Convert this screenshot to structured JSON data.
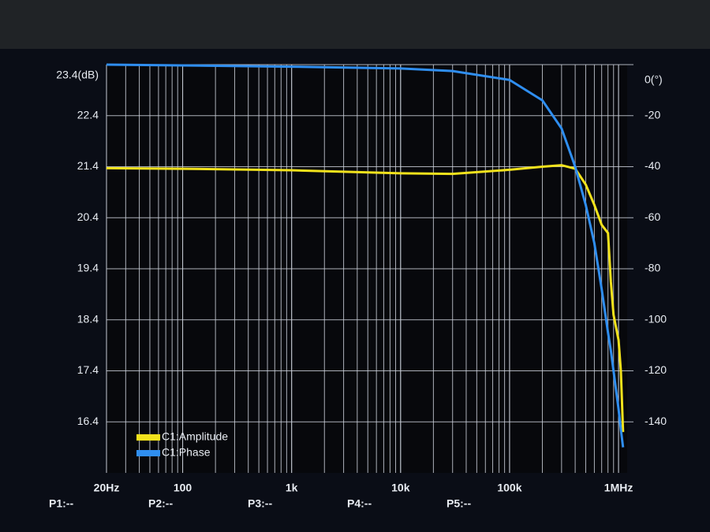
{
  "chart_data": {
    "type": "line",
    "x": [
      20,
      100,
      1000,
      10000,
      30000,
      100000,
      200000,
      300000,
      400000,
      500000,
      600000,
      700000,
      800000,
      850000,
      900000,
      1000000,
      1050000,
      1100000
    ],
    "series": [
      {
        "name": "C1:Amplitude",
        "color": "#f2e21c",
        "values": [
          21.37,
          21.36,
          21.33,
          21.27,
          21.26,
          21.34,
          21.4,
          21.43,
          21.36,
          21.05,
          20.65,
          20.26,
          20.1,
          19.15,
          18.5,
          18.0,
          17.4,
          16.2
        ]
      },
      {
        "name": "C1:Phase",
        "color": "#2f8ef0",
        "axis": "y2",
        "values": [
          0,
          -0.3,
          -0.8,
          -1.5,
          -2.5,
          -6,
          -14,
          -25,
          -40,
          -55,
          -70,
          -88,
          -105,
          -112,
          -120,
          -135,
          -143,
          -150
        ]
      }
    ],
    "xscale": "log",
    "xlim": [
      20,
      1200000
    ],
    "xticks": [
      {
        "value": 20,
        "label": "20Hz"
      },
      100,
      {
        "value": 1000,
        "label": "1k"
      },
      {
        "value": 10000,
        "label": "10k"
      },
      {
        "value": 100000,
        "label": "100k"
      },
      {
        "value": 1000000,
        "label": "1MHz"
      }
    ],
    "ylim": [
      15.4,
      23.4
    ],
    "yticks": [
      16.4,
      17.4,
      18.4,
      19.4,
      20.4,
      21.4,
      22.4,
      {
        "value": 23.4,
        "label": "23.4(dB)"
      }
    ],
    "y2lim": [
      -160,
      0
    ],
    "y2ticks": [
      -140,
      -120,
      -100,
      -80,
      -60,
      -40,
      -20,
      {
        "value": 0,
        "label": "0(°)"
      }
    ],
    "grid": true,
    "legend": "lower left"
  },
  "markers": [
    "P1:--",
    "P2:--",
    "P3:--",
    "P4:--",
    "P5:--"
  ]
}
